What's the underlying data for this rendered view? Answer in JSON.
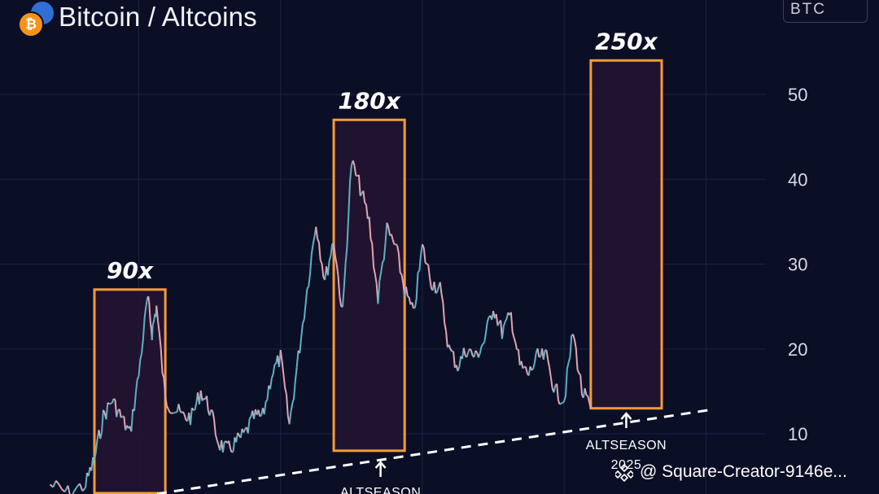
{
  "header": {
    "title": "Bitcoin / Altcoins",
    "ticker": "BTC",
    "logo_symbol": "₿",
    "logo_colors": {
      "bitcoin": "#f7931a",
      "alt": "#2f6fd6"
    }
  },
  "watermark": {
    "text": "@ Square-Creator-9146e..."
  },
  "colors": {
    "background": "#0b0f26",
    "grid": "#1c2140",
    "highlight_box": "#f59a3a",
    "highlight_fill": "#241431",
    "candle_up": "#5fb0c2",
    "candle_down": "#e0a4b4",
    "trendline": "#ffffff",
    "axis_text": "#d8dae6"
  },
  "chart_data": {
    "type": "line",
    "title": "Bitcoin / Altcoins",
    "ylabel": "",
    "xlabel": "",
    "y_axis_position": "right",
    "yticks": [
      10,
      20,
      30,
      40,
      50
    ],
    "ylim": [
      3,
      58
    ],
    "xlim": [
      0,
      100
    ],
    "grid": true,
    "series": [
      {
        "x": [
          6,
          8,
          10,
          11,
          12,
          13,
          14,
          15,
          16,
          17,
          17.5,
          18,
          19,
          20,
          21,
          22,
          23,
          24,
          25,
          26,
          27,
          28,
          29,
          30,
          31,
          32,
          33,
          34,
          35,
          36,
          37,
          38,
          39,
          40,
          41,
          42,
          43,
          44,
          45,
          46,
          47,
          48,
          49,
          50,
          51,
          52,
          53,
          54,
          55,
          56,
          57,
          58,
          59,
          60,
          61,
          62,
          63,
          64,
          65,
          66,
          67
        ],
        "y": [
          4,
          3,
          4,
          7,
          12,
          14,
          12,
          10,
          17,
          26,
          22,
          25,
          14,
          13,
          12,
          12,
          15,
          13,
          9,
          8,
          9,
          10,
          12,
          12,
          17,
          19,
          11,
          19,
          27,
          35,
          28,
          33,
          24,
          42,
          39,
          35,
          26,
          34,
          32,
          27,
          24,
          32,
          28,
          27,
          20,
          18,
          20,
          19,
          21,
          25,
          22,
          24,
          18,
          17,
          19,
          19,
          15,
          14,
          22,
          15,
          13
        ]
      }
    ],
    "highlight_boxes": [
      {
        "label": "90x",
        "x_start": 11,
        "x_end": 19,
        "y_start": 3,
        "y_end": 27
      },
      {
        "label": "180x",
        "x_start": 38,
        "x_end": 46,
        "y_start": 8,
        "y_end": 47
      },
      {
        "label": "250x",
        "x_start": 67,
        "x_end": 75,
        "y_start": 13,
        "y_end": 54
      }
    ],
    "trendline": {
      "style": "dashed",
      "x": [
        18,
        80
      ],
      "y": [
        3,
        15
      ]
    },
    "annotations": [
      {
        "text": "ALTSEASON",
        "x": 42,
        "position": "below-box"
      },
      {
        "text": "ALTSEASON",
        "x": 71,
        "position": "below-box"
      },
      {
        "text": "2025",
        "x": 71,
        "position": "below-box"
      }
    ]
  }
}
